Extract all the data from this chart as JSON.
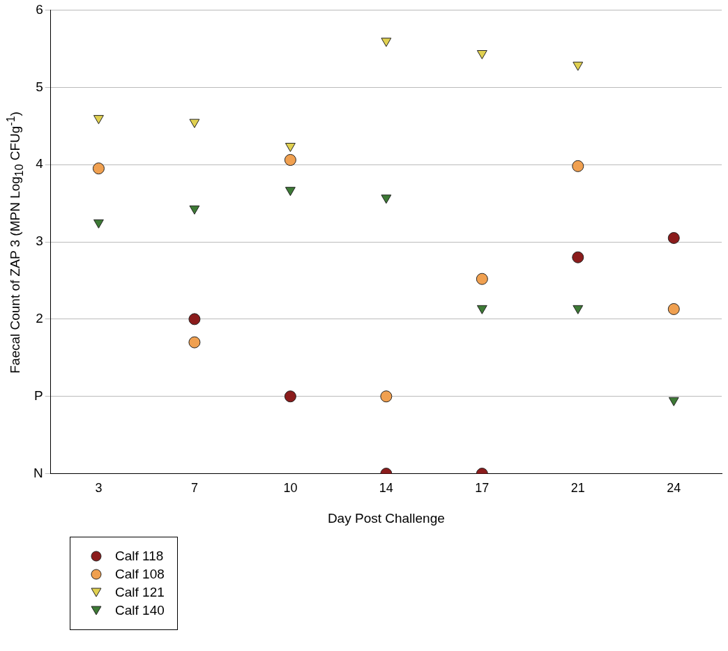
{
  "chart_data": {
    "type": "scatter",
    "xlabel": "Day Post Challenge",
    "ylabel": "Faecal Count of ZAP 3 (MPN Log$_{10}$ CFUg$^{-1}$)",
    "categories": [
      "3",
      "7",
      "10",
      "14",
      "17",
      "21",
      "24"
    ],
    "series": [
      {
        "name": "Calf 118",
        "color": "#8b1c1c",
        "marker": "circle",
        "values": [
          null,
          2.0,
          1.0,
          0,
          0,
          2.8,
          3.05
        ]
      },
      {
        "name": "Calf 108",
        "color": "#f0a050",
        "marker": "circle",
        "values": [
          3.95,
          1.7,
          4.06,
          1.0,
          2.52,
          3.98,
          2.13
        ]
      },
      {
        "name": "Calf 121",
        "color": "#e0d050",
        "marker": "triangle",
        "values": [
          4.6,
          4.55,
          4.24,
          5.6,
          5.44,
          5.29,
          null
        ]
      },
      {
        "name": "Calf 140",
        "color": "#3d7a35",
        "marker": "triangle",
        "values": [
          3.25,
          3.43,
          3.67,
          3.57,
          2.14,
          2.14,
          0.95
        ]
      }
    ],
    "ylim": [
      0,
      6
    ],
    "yticks": [
      {
        "value": 0,
        "label": "N"
      },
      {
        "value": 1,
        "label": "P"
      },
      2,
      3,
      4,
      5,
      6
    ],
    "grid": "y",
    "legend": "bottom left"
  }
}
